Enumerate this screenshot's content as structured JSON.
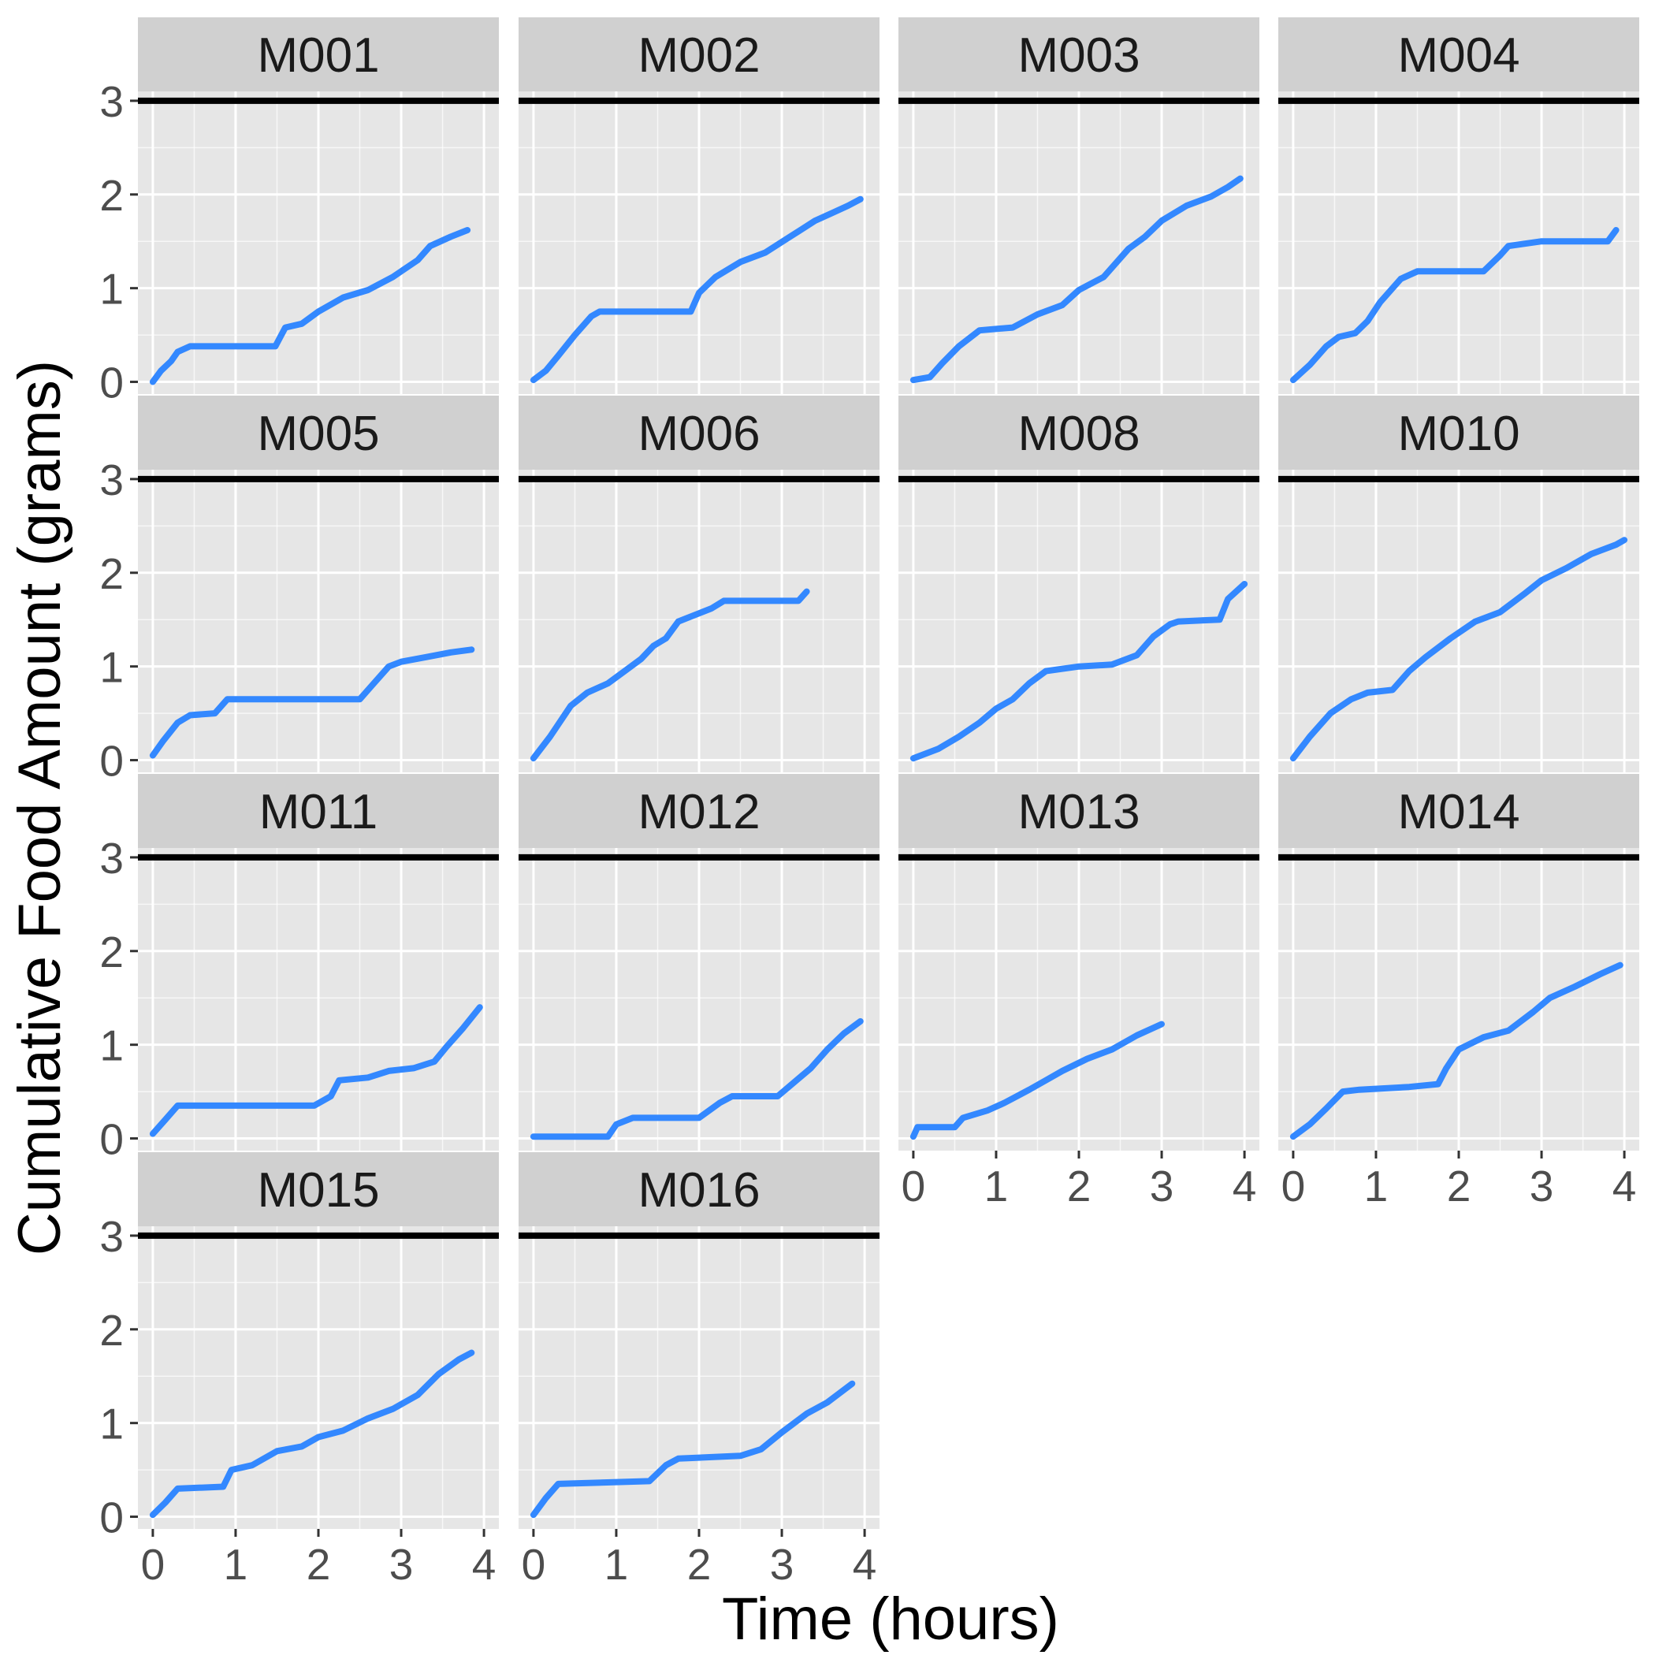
{
  "chart_data": {
    "type": "line",
    "facet_layout": "wrap 4 columns",
    "xlabel": "Time (hours)",
    "ylabel": "Cumulative Food Amount (grams)",
    "xlim": [
      -0.18,
      4.18
    ],
    "ylim": [
      -0.13,
      3.1
    ],
    "x_ticks": [
      0,
      1,
      2,
      3,
      4
    ],
    "y_ticks": [
      0,
      1,
      2,
      3
    ],
    "hline": 3,
    "grid": true,
    "line_color": "#3388ff",
    "hline_color": "#000000",
    "panel_background": "#e6e6e6",
    "strip_background": "#d0d0d0",
    "panels": [
      {
        "name": "M001",
        "points": [
          [
            0,
            0
          ],
          [
            0.1,
            0.12
          ],
          [
            0.22,
            0.22
          ],
          [
            0.3,
            0.32
          ],
          [
            0.45,
            0.38
          ],
          [
            1.48,
            0.38
          ],
          [
            1.6,
            0.58
          ],
          [
            1.8,
            0.62
          ],
          [
            2.0,
            0.75
          ],
          [
            2.3,
            0.9
          ],
          [
            2.6,
            0.98
          ],
          [
            2.9,
            1.12
          ],
          [
            3.2,
            1.3
          ],
          [
            3.35,
            1.45
          ],
          [
            3.6,
            1.55
          ],
          [
            3.8,
            1.62
          ]
        ]
      },
      {
        "name": "M002",
        "points": [
          [
            0,
            0.02
          ],
          [
            0.15,
            0.12
          ],
          [
            0.3,
            0.28
          ],
          [
            0.5,
            0.5
          ],
          [
            0.7,
            0.7
          ],
          [
            0.8,
            0.75
          ],
          [
            1.9,
            0.75
          ],
          [
            2.0,
            0.95
          ],
          [
            2.2,
            1.12
          ],
          [
            2.5,
            1.28
          ],
          [
            2.8,
            1.38
          ],
          [
            3.1,
            1.55
          ],
          [
            3.4,
            1.72
          ],
          [
            3.6,
            1.8
          ],
          [
            3.8,
            1.88
          ],
          [
            3.95,
            1.95
          ]
        ]
      },
      {
        "name": "M003",
        "points": [
          [
            0,
            0.02
          ],
          [
            0.2,
            0.05
          ],
          [
            0.35,
            0.2
          ],
          [
            0.55,
            0.38
          ],
          [
            0.8,
            0.55
          ],
          [
            1.2,
            0.58
          ],
          [
            1.5,
            0.72
          ],
          [
            1.8,
            0.82
          ],
          [
            2.0,
            0.98
          ],
          [
            2.3,
            1.12
          ],
          [
            2.6,
            1.42
          ],
          [
            2.8,
            1.55
          ],
          [
            3.0,
            1.72
          ],
          [
            3.3,
            1.88
          ],
          [
            3.6,
            1.98
          ],
          [
            3.8,
            2.08
          ],
          [
            3.95,
            2.17
          ]
        ]
      },
      {
        "name": "M004",
        "points": [
          [
            0,
            0.02
          ],
          [
            0.2,
            0.18
          ],
          [
            0.4,
            0.38
          ],
          [
            0.55,
            0.48
          ],
          [
            0.75,
            0.52
          ],
          [
            0.9,
            0.65
          ],
          [
            1.05,
            0.85
          ],
          [
            1.3,
            1.1
          ],
          [
            1.5,
            1.18
          ],
          [
            2.3,
            1.18
          ],
          [
            2.5,
            1.35
          ],
          [
            2.6,
            1.45
          ],
          [
            3.0,
            1.5
          ],
          [
            3.8,
            1.5
          ],
          [
            3.9,
            1.62
          ]
        ]
      },
      {
        "name": "M005",
        "points": [
          [
            0,
            0.05
          ],
          [
            0.12,
            0.2
          ],
          [
            0.3,
            0.4
          ],
          [
            0.45,
            0.48
          ],
          [
            0.75,
            0.5
          ],
          [
            0.9,
            0.65
          ],
          [
            2.5,
            0.65
          ],
          [
            2.65,
            0.8
          ],
          [
            2.85,
            1.0
          ],
          [
            3.0,
            1.05
          ],
          [
            3.3,
            1.1
          ],
          [
            3.6,
            1.15
          ],
          [
            3.85,
            1.18
          ]
        ]
      },
      {
        "name": "M006",
        "points": [
          [
            0,
            0.02
          ],
          [
            0.2,
            0.25
          ],
          [
            0.45,
            0.58
          ],
          [
            0.65,
            0.72
          ],
          [
            0.9,
            0.82
          ],
          [
            1.1,
            0.95
          ],
          [
            1.3,
            1.08
          ],
          [
            1.45,
            1.22
          ],
          [
            1.6,
            1.3
          ],
          [
            1.75,
            1.48
          ],
          [
            1.95,
            1.55
          ],
          [
            2.15,
            1.62
          ],
          [
            2.3,
            1.7
          ],
          [
            3.2,
            1.7
          ],
          [
            3.3,
            1.8
          ]
        ]
      },
      {
        "name": "M008",
        "points": [
          [
            0,
            0.02
          ],
          [
            0.3,
            0.12
          ],
          [
            0.55,
            0.25
          ],
          [
            0.8,
            0.4
          ],
          [
            1.0,
            0.55
          ],
          [
            1.2,
            0.65
          ],
          [
            1.4,
            0.82
          ],
          [
            1.6,
            0.95
          ],
          [
            2.0,
            1.0
          ],
          [
            2.4,
            1.02
          ],
          [
            2.7,
            1.12
          ],
          [
            2.9,
            1.32
          ],
          [
            3.1,
            1.45
          ],
          [
            3.2,
            1.48
          ],
          [
            3.7,
            1.5
          ],
          [
            3.8,
            1.72
          ],
          [
            4.0,
            1.88
          ]
        ]
      },
      {
        "name": "M010",
        "points": [
          [
            0,
            0.02
          ],
          [
            0.2,
            0.25
          ],
          [
            0.45,
            0.5
          ],
          [
            0.7,
            0.65
          ],
          [
            0.9,
            0.72
          ],
          [
            1.2,
            0.75
          ],
          [
            1.4,
            0.95
          ],
          [
            1.6,
            1.1
          ],
          [
            1.9,
            1.3
          ],
          [
            2.2,
            1.48
          ],
          [
            2.5,
            1.58
          ],
          [
            2.8,
            1.78
          ],
          [
            3.0,
            1.92
          ],
          [
            3.3,
            2.05
          ],
          [
            3.6,
            2.2
          ],
          [
            3.9,
            2.3
          ],
          [
            4.0,
            2.35
          ]
        ]
      },
      {
        "name": "M011",
        "points": [
          [
            0,
            0.05
          ],
          [
            0.15,
            0.2
          ],
          [
            0.3,
            0.35
          ],
          [
            1.95,
            0.35
          ],
          [
            2.15,
            0.45
          ],
          [
            2.25,
            0.62
          ],
          [
            2.6,
            0.65
          ],
          [
            2.85,
            0.72
          ],
          [
            3.15,
            0.75
          ],
          [
            3.4,
            0.82
          ],
          [
            3.55,
            0.98
          ],
          [
            3.75,
            1.18
          ],
          [
            3.95,
            1.4
          ]
        ]
      },
      {
        "name": "M012",
        "points": [
          [
            0,
            0.02
          ],
          [
            0.9,
            0.02
          ],
          [
            1.0,
            0.15
          ],
          [
            1.2,
            0.22
          ],
          [
            2.0,
            0.22
          ],
          [
            2.25,
            0.38
          ],
          [
            2.4,
            0.45
          ],
          [
            2.95,
            0.45
          ],
          [
            3.15,
            0.6
          ],
          [
            3.35,
            0.75
          ],
          [
            3.55,
            0.95
          ],
          [
            3.75,
            1.12
          ],
          [
            3.95,
            1.25
          ]
        ]
      },
      {
        "name": "M013",
        "points": [
          [
            0,
            0.02
          ],
          [
            0.05,
            0.12
          ],
          [
            0.5,
            0.12
          ],
          [
            0.6,
            0.22
          ],
          [
            0.9,
            0.3
          ],
          [
            1.1,
            0.38
          ],
          [
            1.4,
            0.52
          ],
          [
            1.6,
            0.62
          ],
          [
            1.8,
            0.72
          ],
          [
            2.1,
            0.85
          ],
          [
            2.4,
            0.95
          ],
          [
            2.7,
            1.1
          ],
          [
            3.0,
            1.22
          ]
        ]
      },
      {
        "name": "M014",
        "points": [
          [
            0,
            0.02
          ],
          [
            0.2,
            0.15
          ],
          [
            0.4,
            0.32
          ],
          [
            0.6,
            0.5
          ],
          [
            0.8,
            0.52
          ],
          [
            1.4,
            0.55
          ],
          [
            1.75,
            0.58
          ],
          [
            1.85,
            0.75
          ],
          [
            2.0,
            0.95
          ],
          [
            2.3,
            1.08
          ],
          [
            2.6,
            1.15
          ],
          [
            2.9,
            1.35
          ],
          [
            3.1,
            1.5
          ],
          [
            3.4,
            1.62
          ],
          [
            3.7,
            1.75
          ],
          [
            3.95,
            1.85
          ]
        ]
      },
      {
        "name": "M015",
        "points": [
          [
            0,
            0.02
          ],
          [
            0.15,
            0.15
          ],
          [
            0.3,
            0.3
          ],
          [
            0.85,
            0.32
          ],
          [
            0.95,
            0.5
          ],
          [
            1.2,
            0.55
          ],
          [
            1.5,
            0.7
          ],
          [
            1.8,
            0.75
          ],
          [
            2.0,
            0.85
          ],
          [
            2.3,
            0.92
          ],
          [
            2.6,
            1.05
          ],
          [
            2.9,
            1.15
          ],
          [
            3.2,
            1.3
          ],
          [
            3.45,
            1.52
          ],
          [
            3.7,
            1.68
          ],
          [
            3.85,
            1.75
          ]
        ]
      },
      {
        "name": "M016",
        "points": [
          [
            0,
            0.02
          ],
          [
            0.15,
            0.2
          ],
          [
            0.3,
            0.35
          ],
          [
            1.4,
            0.38
          ],
          [
            1.6,
            0.55
          ],
          [
            1.75,
            0.62
          ],
          [
            2.5,
            0.65
          ],
          [
            2.75,
            0.72
          ],
          [
            3.0,
            0.9
          ],
          [
            3.3,
            1.1
          ],
          [
            3.55,
            1.22
          ],
          [
            3.85,
            1.42
          ]
        ]
      }
    ]
  }
}
